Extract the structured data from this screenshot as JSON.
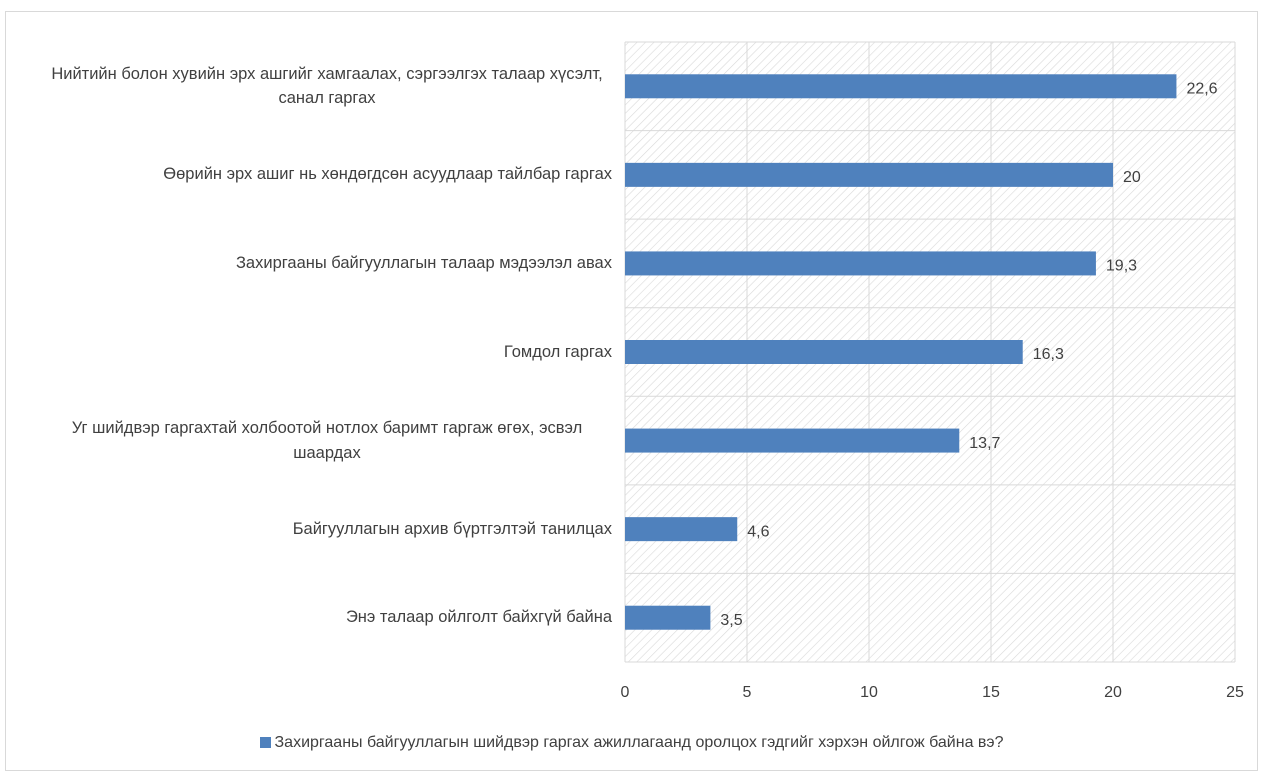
{
  "chart_data": {
    "type": "bar",
    "orientation": "horizontal",
    "categories": [
      "Нийтийн болон хувийн эрх ашгийг хамгаалах, сэргээлгэх талаар хүсэлт, санал гаргах",
      "Өөрийн эрх ашиг нь хөндөгдсөн асуудлаар тайлбар гаргах",
      "Захиргааны байгууллагын талаар мэдээлэл авах",
      "Гомдол гаргах",
      "Уг шийдвэр гаргахтай холбоотой нотлох баримт гаргаж өгөх, эсвэл шаардах",
      "Байгууллагын архив бүртгэлтэй танилцах",
      "Энэ талаар ойлголт байхгүй байна"
    ],
    "series": [
      {
        "name": "Захиргааны байгууллагын шийдвэр гаргах ажиллагаанд оролцох гэдгийг хэрхэн ойлгож байна вэ?",
        "color": "#4f81bd",
        "values": [
          22.6,
          20,
          19.3,
          16.3,
          13.7,
          4.6,
          3.5
        ],
        "value_labels": [
          "22,6",
          "20",
          "19,3",
          "16,3",
          "13,7",
          "4,6",
          "3,5"
        ]
      }
    ],
    "xlim": [
      0,
      25
    ],
    "xticks": [
      0,
      5,
      10,
      15,
      20,
      25
    ],
    "grid": true,
    "legend": "bottom"
  }
}
